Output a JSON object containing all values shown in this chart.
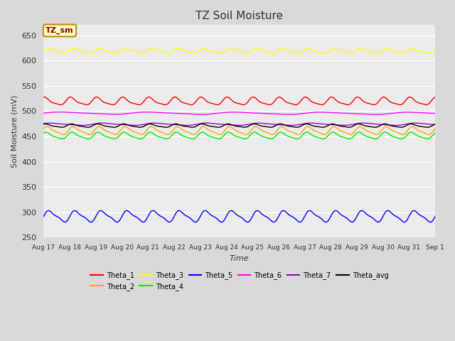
{
  "title": "TZ Soil Moisture",
  "xlabel": "Time",
  "ylabel": "Soil Moisture (mV)",
  "annotation": "TZ_sm",
  "ylim": [
    250,
    670
  ],
  "yticks": [
    250,
    300,
    350,
    400,
    450,
    500,
    550,
    600,
    650
  ],
  "series_order": [
    "Theta_1",
    "Theta_2",
    "Theta_3",
    "Theta_4",
    "Theta_5",
    "Theta_6",
    "Theta_7",
    "Theta_avg"
  ],
  "series": {
    "Theta_1": {
      "color": "#ff0000",
      "base": 519,
      "amp": 7,
      "freq": 1.0,
      "phase": 1.2,
      "trend": -0.0
    },
    "Theta_2": {
      "color": "#ffa500",
      "base": 461,
      "amp": 7,
      "freq": 1.0,
      "phase": 0.5,
      "trend": -0.0
    },
    "Theta_3": {
      "color": "#ffff00",
      "base": 619,
      "amp": 4,
      "freq": 1.0,
      "phase": 0.3,
      "trend": -0.003
    },
    "Theta_4": {
      "color": "#00ee00",
      "base": 451,
      "amp": 6,
      "freq": 1.0,
      "phase": 0.8,
      "trend": -0.0
    },
    "Theta_5": {
      "color": "#0000ff",
      "base": 292,
      "amp": 10,
      "freq": 1.0,
      "phase": 0.0,
      "trend": 0.0
    },
    "Theta_6": {
      "color": "#ff00ff",
      "base": 496,
      "amp": 2,
      "freq": 0.3,
      "phase": 0.0,
      "trend": -0.002
    },
    "Theta_7": {
      "color": "#9900cc",
      "base": 474,
      "amp": 2,
      "freq": 0.5,
      "phase": 0.5,
      "trend": 0.0
    },
    "Theta_avg": {
      "color": "#000000",
      "base": 471,
      "amp": 3,
      "freq": 1.0,
      "phase": 0.9,
      "trend": -0.0
    }
  },
  "x_tick_labels": [
    "Aug 17",
    "Aug 18",
    "Aug 19",
    "Aug 20",
    "Aug 21",
    "Aug 22",
    "Aug 23",
    "Aug 24",
    "Aug 25",
    "Aug 26",
    "Aug 27",
    "Aug 28",
    "Aug 29",
    "Aug 30",
    "Aug 31",
    "Sep 1"
  ],
  "background_color": "#d9d9d9",
  "plot_bg_color": "#ebebeb",
  "grid_color": "#ffffff",
  "title_fontsize": 11,
  "label_fontsize": 8,
  "tick_fontsize": 8
}
